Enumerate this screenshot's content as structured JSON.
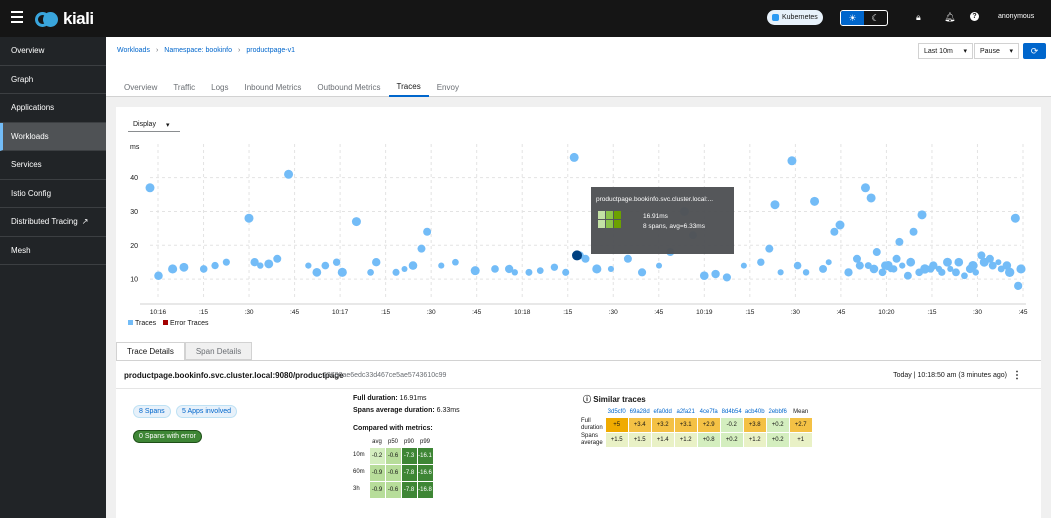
{
  "header": {
    "logo_text": "kiali",
    "cluster_badge": "Kubernetes",
    "theme_light_icon": "sun-icon",
    "theme_dark_icon": "moon-icon",
    "user": "anonymous"
  },
  "sidebar": {
    "items": [
      {
        "label": "Overview"
      },
      {
        "label": "Graph"
      },
      {
        "label": "Applications"
      },
      {
        "label": "Workloads",
        "active": true
      },
      {
        "label": "Services"
      },
      {
        "label": "Istio Config"
      },
      {
        "label": "Distributed Tracing"
      },
      {
        "label": "Mesh"
      }
    ]
  },
  "breadcrumb": {
    "items": [
      "Workloads",
      "Namespace: bookinfo",
      "productpage-v1"
    ]
  },
  "controls": {
    "duration": "Last 10m",
    "refresh": "Pause"
  },
  "tabs": [
    "Overview",
    "Traffic",
    "Logs",
    "Inbound Metrics",
    "Outbound Metrics",
    "Traces",
    "Envoy"
  ],
  "active_tab": "Traces",
  "chart_data": {
    "type": "scatter",
    "display_select": "Display",
    "ylabel": "ms",
    "ylim": [
      5,
      47
    ],
    "yticks": [
      10,
      20,
      30,
      40
    ],
    "xticks": [
      "10:16",
      ":15",
      ":30",
      ":45",
      "10:17",
      ":15",
      ":30",
      ":45",
      "10:18",
      ":15",
      ":30",
      ":45",
      "10:19",
      ":15",
      ":30",
      ":45",
      "10:20",
      ":15",
      ":30",
      ":45"
    ],
    "legend": [
      "Traces",
      "Error Traces"
    ],
    "legend_colors": [
      "#73bcf7",
      "#a30000"
    ],
    "series": [
      {
        "name": "Traces",
        "points": [
          [
            0.0,
            37
          ],
          [
            0.3,
            11
          ],
          [
            0.8,
            13
          ],
          [
            1.2,
            13.5
          ],
          [
            1.9,
            13
          ],
          [
            2.3,
            14
          ],
          [
            2.7,
            15
          ],
          [
            3.5,
            28
          ],
          [
            3.7,
            15
          ],
          [
            3.9,
            14
          ],
          [
            4.2,
            14.5
          ],
          [
            4.5,
            16
          ],
          [
            4.9,
            41
          ],
          [
            5.6,
            14
          ],
          [
            5.9,
            12
          ],
          [
            6.2,
            14
          ],
          [
            6.6,
            15
          ],
          [
            6.8,
            12
          ],
          [
            7.3,
            27
          ],
          [
            7.8,
            12
          ],
          [
            8.0,
            15
          ],
          [
            8.7,
            12
          ],
          [
            9.0,
            13
          ],
          [
            9.3,
            14
          ],
          [
            9.6,
            19
          ],
          [
            9.8,
            24
          ],
          [
            10.3,
            14
          ],
          [
            10.8,
            15
          ],
          [
            11.5,
            12.5
          ],
          [
            12.2,
            13
          ],
          [
            12.7,
            13
          ],
          [
            12.9,
            12
          ],
          [
            13.4,
            12
          ],
          [
            13.8,
            12.5
          ],
          [
            14.3,
            13.5
          ],
          [
            14.7,
            12
          ],
          [
            15.0,
            46
          ],
          [
            15.2,
            17
          ],
          [
            15.4,
            16
          ],
          [
            15.8,
            13
          ],
          [
            16.3,
            13
          ],
          [
            16.9,
            16
          ],
          [
            17.4,
            12
          ],
          [
            18.0,
            14
          ],
          [
            18.4,
            18
          ],
          [
            18.9,
            30
          ],
          [
            19.2,
            23
          ],
          [
            19.6,
            11
          ],
          [
            20.0,
            11.5
          ],
          [
            20.4,
            10.5
          ],
          [
            21.0,
            14
          ],
          [
            21.6,
            15
          ],
          [
            21.9,
            19
          ],
          [
            22.1,
            32
          ],
          [
            22.3,
            12
          ],
          [
            22.7,
            45
          ],
          [
            22.9,
            14
          ],
          [
            23.2,
            12
          ],
          [
            23.5,
            33
          ],
          [
            23.8,
            13
          ],
          [
            24.0,
            15
          ],
          [
            24.2,
            24
          ],
          [
            24.4,
            26
          ],
          [
            24.7,
            12
          ],
          [
            25.0,
            16
          ],
          [
            25.3,
            37
          ],
          [
            25.5,
            34
          ],
          [
            25.7,
            18
          ],
          [
            26.2,
            13
          ],
          [
            26.5,
            21
          ],
          [
            26.8,
            11
          ],
          [
            27.0,
            24
          ],
          [
            27.3,
            29
          ],
          [
            27.6,
            13
          ],
          [
            27.9,
            13
          ],
          [
            28.2,
            15
          ],
          [
            28.5,
            12
          ],
          [
            28.8,
            11
          ],
          [
            29.1,
            14
          ],
          [
            29.4,
            17
          ],
          [
            29.7,
            16
          ],
          [
            30.0,
            15
          ],
          [
            30.3,
            14
          ],
          [
            30.6,
            28
          ],
          [
            30.8,
            13
          ],
          [
            25.1,
            14
          ],
          [
            25.9,
            12
          ],
          [
            26.0,
            14
          ],
          [
            26.3,
            13
          ],
          [
            26.6,
            14
          ],
          [
            26.9,
            15
          ],
          [
            27.2,
            12
          ],
          [
            27.4,
            13
          ],
          [
            27.7,
            14
          ],
          [
            28.0,
            12
          ],
          [
            28.3,
            13
          ],
          [
            28.6,
            15
          ],
          [
            29.0,
            13
          ],
          [
            29.2,
            12
          ],
          [
            29.5,
            15
          ],
          [
            29.8,
            14
          ],
          [
            30.1,
            13
          ],
          [
            30.4,
            12
          ],
          [
            30.7,
            8
          ],
          [
            25.4,
            14
          ],
          [
            25.6,
            13
          ],
          [
            26.1,
            14
          ],
          [
            26.4,
            16
          ]
        ]
      }
    ],
    "highlighted_point": [
      15.1,
      17
    ]
  },
  "tooltip": {
    "title": "productpage.bookinfo.svc.cluster.local:...",
    "duration": "16.91ms",
    "spans": "8 spans, avg=6.33ms"
  },
  "details": {
    "tabs": [
      "Trace Details",
      "Span Details"
    ],
    "title": "productpage.bookinfo.svc.cluster.local:9080/productpage",
    "trace_id": "23780ae6edc33d467ce5ae5743610c99",
    "date": "Today | 10:18:50 am (3 minutes ago)",
    "pills": {
      "spans": "8 Spans",
      "apps": "5 Apps involved",
      "errors": "0 Spans with error"
    },
    "full_duration_label": "Full duration:",
    "full_duration": "16.91ms",
    "spans_avg_label": "Spans average duration:",
    "spans_avg": "6.33ms",
    "compared_label": "Compared with metrics:",
    "metrics": {
      "columns": [
        "avg",
        "p50",
        "p90",
        "p99"
      ],
      "rows": [
        {
          "label": "10m",
          "values": [
            "-0.2",
            "-0.6",
            "-7.3",
            "-16.1"
          ]
        },
        {
          "label": "60m",
          "values": [
            "-0.9",
            "-0.6",
            "-7.8",
            "-16.6"
          ]
        },
        {
          "label": "3h",
          "values": [
            "-0.9",
            "-0.6",
            "-7.8",
            "-16.8"
          ]
        }
      ]
    },
    "similar": {
      "title": "Similar traces",
      "columns": [
        "3d5cf0",
        "69a28d",
        "efa0dd",
        "a2fa21",
        "4ce7fa",
        "8d4b54",
        "acb40b",
        "2ebbf6",
        "Mean"
      ],
      "rows": [
        {
          "label": "Full duration",
          "values": [
            "+5",
            "+3.4",
            "+3.2",
            "+3.1",
            "+2.9",
            "-0.2",
            "+3.8",
            "+0.2",
            "+2.7"
          ]
        },
        {
          "label": "Spans average",
          "values": [
            "+1.5",
            "+1.5",
            "+1.4",
            "+1.2",
            "+0.8",
            "+0.2",
            "+1.2",
            "+0.2",
            "+1"
          ]
        }
      ]
    }
  }
}
